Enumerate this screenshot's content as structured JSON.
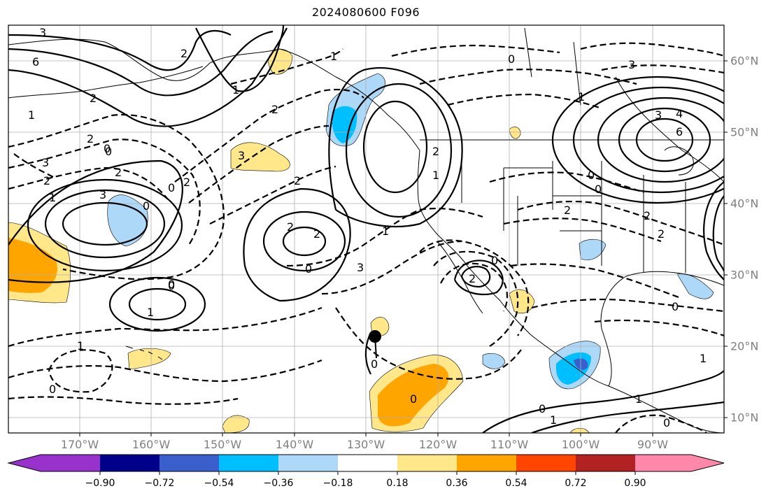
{
  "title": "2024080600 F096",
  "lon_ticks": [
    "170°W",
    "160°W",
    "150°W",
    "140°W",
    "130°W",
    "120°W",
    "110°W",
    "100°W",
    "90°W"
  ],
  "lat_ticks": [
    "60°N",
    "50°N",
    "40°N",
    "30°N",
    "20°N",
    "10°N"
  ],
  "colorbar": {
    "labels": [
      "−0.90",
      "−0.72",
      "−0.54",
      "−0.36",
      "−0.18",
      "0.18",
      "0.36",
      "0.54",
      "0.72",
      "0.90"
    ],
    "colors": [
      "#9932cc",
      "#00008b",
      "#3a5fcd",
      "#00bfff",
      "#add8f8",
      "#ffffff",
      "#ffe78a",
      "#ffa500",
      "#ff4500",
      "#b22222",
      "#ff88aa"
    ]
  },
  "contour_labels": [
    "3",
    "6",
    "2",
    "1",
    "2",
    "1",
    "2",
    "1",
    "3",
    "2",
    "2",
    "3",
    "2",
    "1",
    "0",
    "0",
    "2",
    "0",
    "1",
    "1",
    "0",
    "3",
    "2",
    "2",
    "3",
    "4",
    "6",
    "0",
    "0",
    "2",
    "2",
    "2",
    "0",
    "1",
    "0",
    "0",
    "1",
    "2",
    "1",
    "3",
    "0",
    "1",
    "0",
    "3",
    "0",
    "2",
    "0",
    "1",
    "1",
    "0",
    "0",
    "2",
    "0",
    "0"
  ],
  "marker": "storm-position"
}
